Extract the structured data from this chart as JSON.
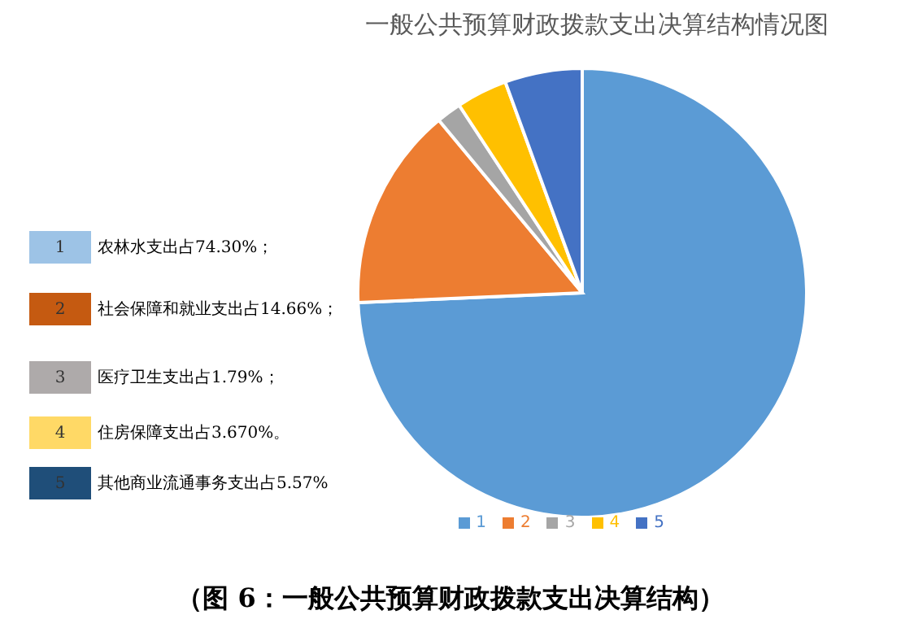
{
  "chart_data": {
    "type": "pie",
    "title": "一般公共预算财政拨款支出决算结构情况图",
    "categories": [
      "1",
      "2",
      "3",
      "4",
      "5"
    ],
    "values": [
      74.3,
      14.66,
      1.79,
      3.67,
      5.57
    ],
    "colors": [
      "#5b9bd5",
      "#ed7d31",
      "#a5a5a5",
      "#ffc000",
      "#4472c4"
    ],
    "legend": "bottom",
    "annotations": [
      "1",
      "农林水支出占74.30%；",
      "2",
      "社会保障和就业支出占14.66%；",
      "3",
      "医疗卫生支出占1.79%；",
      "4",
      "住房保障支出占3.670%。",
      "5",
      "其他商业流通事务支出占5.57%",
      "（图 6：一般公共预算财政拨款支出决算结构）"
    ]
  }
}
